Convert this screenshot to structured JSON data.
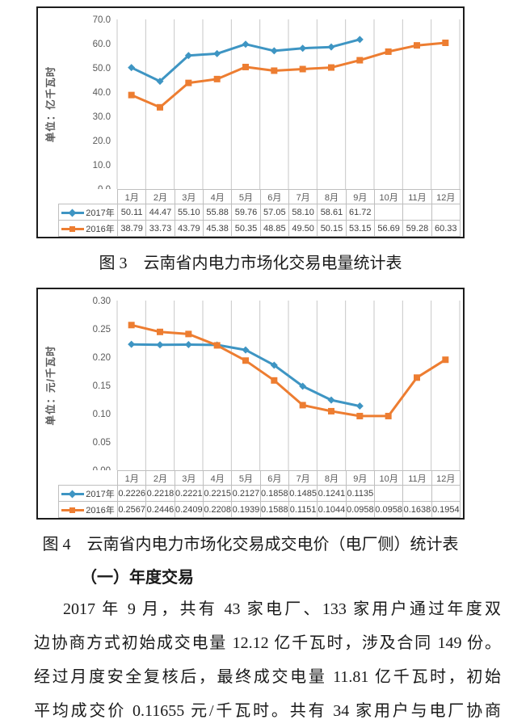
{
  "page": {
    "figure3_caption": "图 3　云南省内电力市场化交易电量统计表",
    "figure4_caption": "图 4　云南省内电力市场化交易成交电价（电厂侧）统计表",
    "section_heading": "（一）年度交易",
    "paragraph_lines": [
      "2017 年 9 月，共有 43 家电厂、133 家用户通过年度双",
      "边协商方式初始成交电量 12.12 亿千瓦时，涉及合同 149 份。",
      "经过月度安全复核后，最终成交电量 11.81 亿千瓦时，初始",
      "平均成交价 0.11655 元/千瓦时。共有 34 家用户与电厂协商"
    ]
  },
  "colors": {
    "series_2017": "#3E95C3",
    "series_2016": "#ED7D31",
    "gridline": "#c7c7c7",
    "axis_text": "#595959",
    "table_border": "#bfbfbf"
  },
  "chart_data": [
    {
      "id": "figure3",
      "type": "line",
      "title": "",
      "ylabel": "单位：亿千瓦时",
      "xlabel": "",
      "ylim": [
        0,
        70
      ],
      "ytick_step": 10,
      "ytick_decimals": 1,
      "value_decimals": 2,
      "grid": "vertical-only",
      "legend_position": "data-table-left",
      "categories": [
        "1月",
        "2月",
        "3月",
        "4月",
        "5月",
        "6月",
        "7月",
        "8月",
        "9月",
        "10月",
        "11月",
        "12月"
      ],
      "series": [
        {
          "name": "2017年",
          "color": "#3E95C3",
          "marker": "diamond",
          "values": [
            50.11,
            44.47,
            55.1,
            55.88,
            59.76,
            57.05,
            58.1,
            58.61,
            61.72,
            null,
            null,
            null
          ]
        },
        {
          "name": "2016年",
          "color": "#ED7D31",
          "marker": "square",
          "values": [
            38.79,
            33.73,
            43.79,
            45.38,
            50.35,
            48.85,
            49.5,
            50.15,
            53.15,
            56.69,
            59.28,
            60.33
          ]
        }
      ]
    },
    {
      "id": "figure4",
      "type": "line",
      "title": "",
      "ylabel": "单位：元/千瓦时",
      "xlabel": "",
      "ylim": [
        0,
        0.3
      ],
      "ytick_step": 0.05,
      "ytick_decimals": 2,
      "value_decimals": 4,
      "grid": "vertical-only",
      "legend_position": "data-table-left",
      "categories": [
        "1月",
        "2月",
        "3月",
        "4月",
        "5月",
        "6月",
        "7月",
        "8月",
        "9月",
        "10月",
        "11月",
        "12月"
      ],
      "series": [
        {
          "name": "2017年",
          "color": "#3E95C3",
          "marker": "diamond",
          "values": [
            0.2226,
            0.2218,
            0.2221,
            0.2215,
            0.2127,
            0.1858,
            0.1485,
            0.1241,
            0.1135,
            null,
            null,
            null
          ]
        },
        {
          "name": "2016年",
          "color": "#ED7D31",
          "marker": "square",
          "values": [
            0.2567,
            0.2446,
            0.2409,
            0.2208,
            0.1939,
            0.1588,
            0.1151,
            0.1044,
            0.0958,
            0.0958,
            0.1638,
            0.1954
          ]
        }
      ]
    }
  ]
}
